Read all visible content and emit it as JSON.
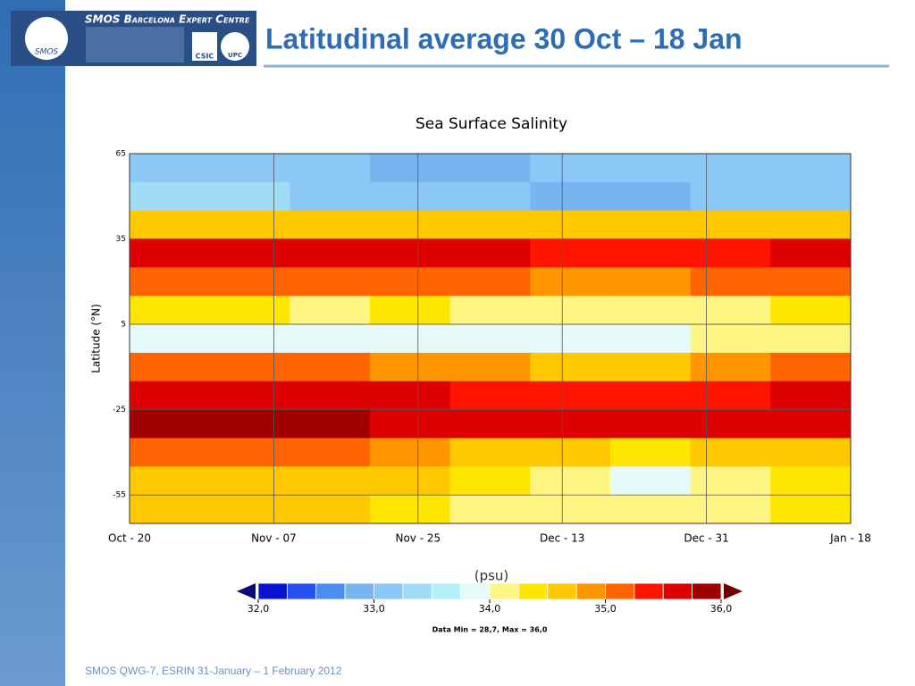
{
  "slide": {
    "title": "Latitudinal average 30 Oct – 18 Jan",
    "footer": "SMOS QWG-7, ESRIN 31-January – 1 February 2012",
    "logo": {
      "centre": "SMOS Barcelona Expert Centre",
      "mission": "SMOS",
      "institute1": "CSIC",
      "institute2": "UPC"
    }
  },
  "chart_data": {
    "type": "heatmap",
    "title": "Sea Surface Salinity",
    "ylabel": "Latitude (°N)",
    "xlim": [
      0,
      90
    ],
    "xticks": [
      {
        "value": 0,
        "label": "Oct - 20"
      },
      {
        "value": 18,
        "label": "Nov - 07"
      },
      {
        "value": 36,
        "label": "Nov - 25"
      },
      {
        "value": 54,
        "label": "Dec - 13"
      },
      {
        "value": 72,
        "label": "Dec - 31"
      },
      {
        "value": 90,
        "label": "Jan - 18"
      }
    ],
    "ylim": [
      -65,
      65
    ],
    "yticks": [
      65,
      35,
      5,
      -25,
      -55
    ],
    "grid": true,
    "xbins": [
      0,
      10,
      20,
      30,
      40,
      50,
      60,
      70,
      80,
      90
    ],
    "ybins": [
      65,
      55,
      45,
      35,
      25,
      15,
      5,
      -5,
      -15,
      -25,
      -35,
      -45,
      -55,
      -65
    ],
    "values": [
      [
        33.2,
        33.1,
        33.0,
        32.9,
        32.8,
        33.0,
        33.1,
        33.2,
        33.1
      ],
      [
        33.4,
        33.3,
        33.1,
        33.0,
        33.1,
        32.9,
        32.9,
        33.1,
        33.2
      ],
      [
        34.6,
        34.6,
        34.5,
        34.5,
        34.6,
        34.5,
        34.6,
        34.5,
        34.6
      ],
      [
        35.6,
        35.6,
        35.5,
        35.6,
        35.5,
        35.4,
        35.3,
        35.4,
        35.6
      ],
      [
        35.1,
        35.2,
        35.0,
        35.1,
        35.0,
        34.9,
        34.9,
        35.0,
        35.1
      ],
      [
        34.4,
        34.3,
        34.2,
        34.3,
        34.2,
        34.2,
        34.1,
        34.2,
        34.3
      ],
      [
        33.9,
        33.8,
        33.8,
        33.9,
        33.9,
        33.9,
        33.8,
        34.1,
        34.0
      ],
      [
        35.1,
        35.0,
        35.0,
        34.9,
        34.8,
        34.6,
        34.6,
        34.8,
        35.0
      ],
      [
        35.7,
        35.7,
        35.6,
        35.5,
        35.4,
        35.3,
        35.3,
        35.4,
        35.6
      ],
      [
        35.8,
        35.9,
        35.8,
        35.7,
        35.6,
        35.6,
        35.5,
        35.5,
        35.7
      ],
      [
        35.2,
        35.1,
        35.0,
        34.9,
        34.7,
        34.5,
        34.4,
        34.5,
        34.7
      ],
      [
        34.7,
        34.6,
        34.6,
        34.5,
        34.4,
        34.1,
        33.9,
        34.0,
        34.3
      ],
      [
        34.6,
        34.5,
        34.5,
        34.4,
        34.2,
        34.1,
        34.1,
        34.2,
        34.3
      ]
    ],
    "colorbar": {
      "label": "(psu)",
      "bounds": [
        32,
        32.25,
        32.5,
        32.75,
        33,
        33.25,
        33.5,
        33.75,
        34,
        34.25,
        34.5,
        34.75,
        35,
        35.25,
        35.5,
        35.75,
        36
      ],
      "colors": [
        "#0a14d2",
        "#2850f0",
        "#4b8cf0",
        "#78b4f0",
        "#8cc8f5",
        "#a0dcf5",
        "#b4f0fa",
        "#e6fafa",
        "#fff582",
        "#ffe600",
        "#ffc800",
        "#ff9600",
        "#ff6400",
        "#ff1400",
        "#dc0000",
        "#a00000"
      ],
      "under_color": "#0a0a78",
      "over_color": "#6e0000",
      "ticks": [
        {
          "value": 32,
          "label": "32,0"
        },
        {
          "value": 33,
          "label": "33,0"
        },
        {
          "value": 34,
          "label": "34,0"
        },
        {
          "value": 35,
          "label": "35,0"
        },
        {
          "value": 36,
          "label": "36,0"
        }
      ],
      "note": "Data Min = 28,7, Max = 36,0"
    }
  }
}
